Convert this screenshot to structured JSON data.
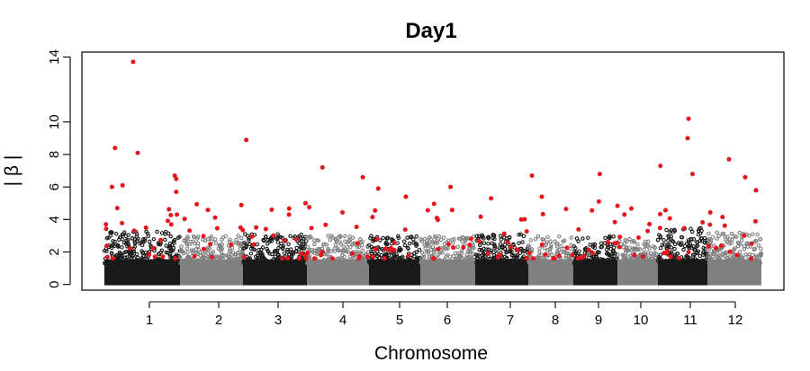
{
  "chart_data": {
    "type": "scatter",
    "subtype": "manhattan",
    "title": "Day1",
    "xlabel": "Chromosome",
    "ylabel": "| β |",
    "ylim": [
      0,
      14.3
    ],
    "yticks": [
      0,
      2,
      4,
      6,
      8,
      10,
      14
    ],
    "grid": false,
    "legend": "none",
    "colors": {
      "odd_chromosomes": "#1a1a1a",
      "even_chromosomes": "#808080",
      "highlight": "#e8141b",
      "frame": "#000000"
    },
    "chromosomes": [
      {
        "label": "1",
        "typical_max": 3.3
      },
      {
        "label": "2",
        "typical_max": 3.0
      },
      {
        "label": "3",
        "typical_max": 3.1
      },
      {
        "label": "4",
        "typical_max": 3.0
      },
      {
        "label": "5",
        "typical_max": 3.0
      },
      {
        "label": "6",
        "typical_max": 3.0
      },
      {
        "label": "7",
        "typical_max": 3.1
      },
      {
        "label": "8",
        "typical_max": 3.0
      },
      {
        "label": "9",
        "typical_max": 3.0
      },
      {
        "label": "10",
        "typical_max": 2.8
      },
      {
        "label": "11",
        "typical_max": 3.5
      },
      {
        "label": "12",
        "typical_max": 3.2
      }
    ],
    "highlighted_points": [
      {
        "chr": "1",
        "pos": 0.1,
        "y": 6.0
      },
      {
        "chr": "1",
        "pos": 0.14,
        "y": 8.4
      },
      {
        "chr": "1",
        "pos": 0.17,
        "y": 4.7
      },
      {
        "chr": "1",
        "pos": 0.24,
        "y": 6.1
      },
      {
        "chr": "1",
        "pos": 0.38,
        "y": 13.7
      },
      {
        "chr": "1",
        "pos": 0.44,
        "y": 8.1
      },
      {
        "chr": "1",
        "pos": 0.55,
        "y": 3.5
      },
      {
        "chr": "1",
        "pos": 0.93,
        "y": 6.7
      },
      {
        "chr": "1",
        "pos": 0.95,
        "y": 6.5
      },
      {
        "chr": "1",
        "pos": 0.95,
        "y": 5.7
      },
      {
        "chr": "1",
        "pos": 0.96,
        "y": 4.3
      },
      {
        "chr": "3",
        "pos": 0.05,
        "y": 8.9
      },
      {
        "chr": "3",
        "pos": 0.45,
        "y": 4.6
      },
      {
        "chr": "3",
        "pos": 0.72,
        "y": 4.3
      },
      {
        "chr": "4",
        "pos": 0.25,
        "y": 7.2
      },
      {
        "chr": "4",
        "pos": 0.9,
        "y": 6.6
      },
      {
        "chr": "5",
        "pos": 0.18,
        "y": 5.9
      },
      {
        "chr": "5",
        "pos": 0.72,
        "y": 5.4
      },
      {
        "chr": "6",
        "pos": 0.55,
        "y": 6.0
      },
      {
        "chr": "7",
        "pos": 0.3,
        "y": 5.3
      },
      {
        "chr": "8",
        "pos": 0.08,
        "y": 6.7
      },
      {
        "chr": "8",
        "pos": 0.3,
        "y": 5.4
      },
      {
        "chr": "9",
        "pos": 0.6,
        "y": 6.8
      },
      {
        "chr": "9",
        "pos": 0.58,
        "y": 5.1
      },
      {
        "chr": "11",
        "pos": 0.05,
        "y": 7.3
      },
      {
        "chr": "11",
        "pos": 0.62,
        "y": 10.2
      },
      {
        "chr": "11",
        "pos": 0.6,
        "y": 9.0
      },
      {
        "chr": "11",
        "pos": 0.7,
        "y": 6.8
      },
      {
        "chr": "12",
        "pos": 0.4,
        "y": 7.7
      },
      {
        "chr": "12",
        "pos": 0.7,
        "y": 6.6
      },
      {
        "chr": "12",
        "pos": 0.9,
        "y": 5.8
      }
    ]
  }
}
